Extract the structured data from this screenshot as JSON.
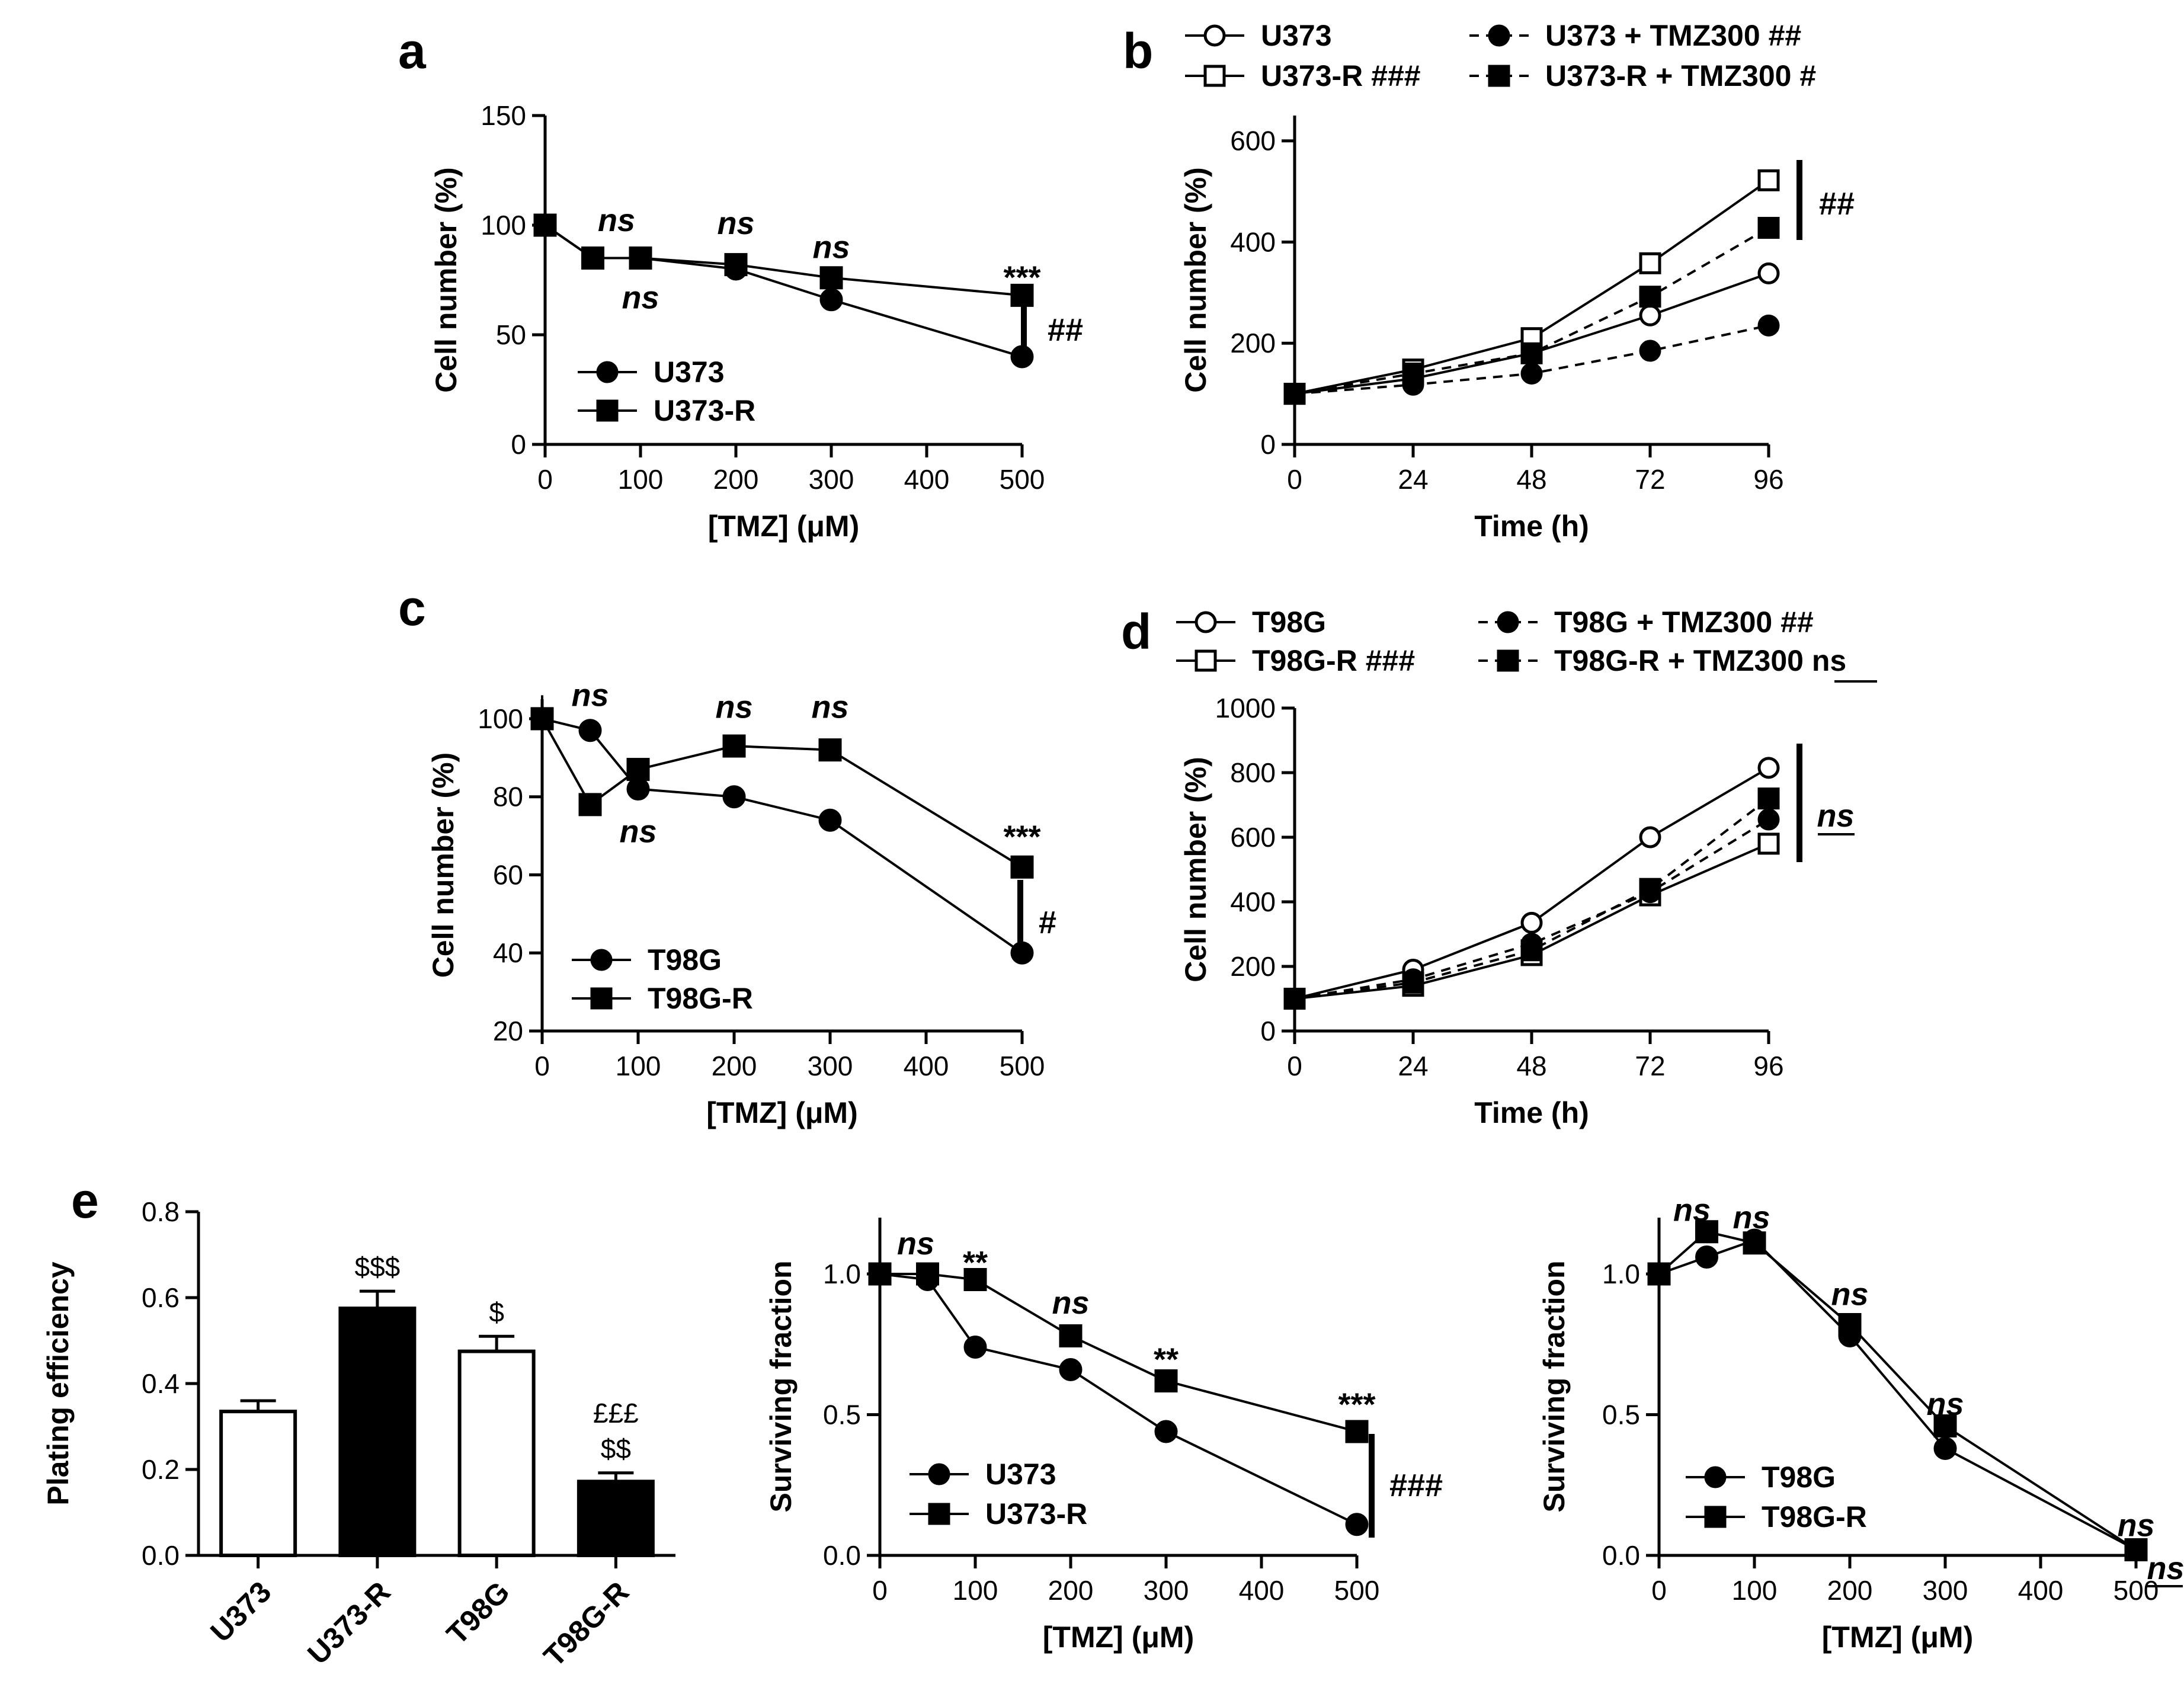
{
  "chart_data": [
    {
      "id": "a",
      "type": "line",
      "panel_label": "a",
      "xlabel": "[TMZ] (μM)",
      "ylabel": "Cell number (%)",
      "xlim": [
        0,
        500
      ],
      "ylim": [
        0,
        150
      ],
      "xticks": [
        "0",
        "100",
        "200",
        "300",
        "400",
        "500"
      ],
      "yticks": [
        "0",
        "50",
        "100",
        "150"
      ],
      "x": [
        0,
        50,
        100,
        200,
        300,
        500
      ],
      "series": [
        {
          "name": "U373",
          "marker": "filled-circle",
          "values": [
            100,
            85,
            85,
            80,
            66,
            40
          ]
        },
        {
          "name": "U373-R",
          "marker": "filled-square",
          "values": [
            100,
            85,
            85,
            82,
            76,
            68
          ]
        }
      ],
      "annotations": [
        "ns",
        "ns",
        "ns",
        "ns",
        "***",
        "##"
      ]
    },
    {
      "id": "b",
      "type": "line",
      "panel_label": "b",
      "xlabel": "Time (h)",
      "ylabel": "Cell number (%)",
      "xlim": [
        0,
        96
      ],
      "ylim": [
        0,
        650
      ],
      "xticks": [
        "0",
        "24",
        "48",
        "72",
        "96"
      ],
      "yticks": [
        "0",
        "200",
        "400",
        "600"
      ],
      "x": [
        0,
        24,
        48,
        72,
        96
      ],
      "series": [
        {
          "name": "U373",
          "marker": "open-circle",
          "values": [
            100,
            130,
            180,
            255,
            338
          ]
        },
        {
          "name": "U373-R ###",
          "marker": "open-square",
          "values": [
            100,
            148,
            210,
            358,
            522
          ]
        },
        {
          "name": "U373 + TMZ300 ##",
          "marker": "filled-circle",
          "values": [
            100,
            118,
            140,
            185,
            235
          ]
        },
        {
          "name": "U373-R + TMZ300 #",
          "marker": "filled-square",
          "values": [
            100,
            140,
            180,
            292,
            428
          ]
        }
      ],
      "annotations": [
        "##"
      ]
    },
    {
      "id": "c",
      "type": "line",
      "panel_label": "c",
      "xlabel": "[TMZ] (μM)",
      "ylabel": "Cell number (%)",
      "xlim": [
        0,
        500
      ],
      "ylim": [
        20,
        105
      ],
      "xticks": [
        "0",
        "100",
        "200",
        "300",
        "400",
        "500"
      ],
      "yticks": [
        "20",
        "40",
        "60",
        "80",
        "100"
      ],
      "x": [
        0,
        50,
        100,
        200,
        300,
        500
      ],
      "series": [
        {
          "name": "T98G",
          "marker": "filled-circle",
          "values": [
            100,
            97,
            82,
            80,
            74,
            40
          ]
        },
        {
          "name": "T98G-R",
          "marker": "filled-square",
          "values": [
            100,
            78,
            87,
            93,
            92,
            62
          ]
        }
      ],
      "annotations": [
        "ns",
        "ns",
        "ns",
        "ns",
        "***",
        "#"
      ]
    },
    {
      "id": "d",
      "type": "line",
      "panel_label": "d",
      "xlabel": "Time (h)",
      "ylabel": "Cell number (%)",
      "xlim": [
        0,
        96
      ],
      "ylim": [
        0,
        1000
      ],
      "xticks": [
        "0",
        "24",
        "48",
        "72",
        "96"
      ],
      "yticks": [
        "0",
        "200",
        "400",
        "600",
        "800",
        "1000"
      ],
      "x": [
        0,
        24,
        48,
        72,
        96
      ],
      "series": [
        {
          "name": "T98G",
          "marker": "open-circle",
          "values": [
            100,
            190,
            335,
            600,
            815
          ]
        },
        {
          "name": "T98G-R ###",
          "marker": "open-square",
          "values": [
            100,
            140,
            235,
            420,
            580
          ]
        },
        {
          "name": "T98G + TMZ300 ##",
          "marker": "filled-circle",
          "values": [
            100,
            160,
            270,
            430,
            655
          ]
        },
        {
          "name": "T98G-R + TMZ300 ns",
          "marker": "filled-square",
          "values": [
            100,
            150,
            250,
            440,
            720
          ]
        }
      ],
      "annotations": [
        "ns"
      ]
    },
    {
      "id": "e1",
      "type": "bar",
      "panel_label": "e",
      "xlabel": "",
      "ylabel": "Plating efficiency",
      "ylim": [
        0,
        0.8
      ],
      "yticks": [
        "0.0",
        "0.2",
        "0.4",
        "0.6",
        "0.8"
      ],
      "categories": [
        "U373",
        "U373-R",
        "T98G",
        "T98G-R"
      ],
      "values": [
        0.335,
        0.575,
        0.475,
        0.172
      ],
      "fills": [
        "white",
        "black",
        "white",
        "black"
      ],
      "bar_annotations": [
        "",
        "$$$",
        "$",
        "$$"
      ],
      "bar_annotations2": [
        "",
        "",
        "",
        "£££"
      ]
    },
    {
      "id": "e2",
      "type": "line",
      "xlabel": "[TMZ] (μM)",
      "ylabel": "Surviving fraction",
      "xlim": [
        0,
        500
      ],
      "ylim": [
        0,
        1.2
      ],
      "xticks": [
        "0",
        "100",
        "200",
        "300",
        "400",
        "500"
      ],
      "yticks": [
        "0.0",
        "0.5",
        "1.0"
      ],
      "x": [
        0,
        50,
        100,
        200,
        300,
        500
      ],
      "series": [
        {
          "name": "U373",
          "marker": "filled-circle",
          "values": [
            1.0,
            0.98,
            0.74,
            0.66,
            0.44,
            0.11
          ]
        },
        {
          "name": "U373-R",
          "marker": "filled-square",
          "values": [
            1.0,
            1.0,
            0.98,
            0.78,
            0.62,
            0.44
          ]
        }
      ],
      "annotations": [
        "ns",
        "**",
        "ns",
        "**",
        "***",
        "###"
      ]
    },
    {
      "id": "e3",
      "type": "line",
      "xlabel": "[TMZ] (μM)",
      "ylabel": "Surviving fraction",
      "xlim": [
        0,
        500
      ],
      "ylim": [
        0,
        1.2
      ],
      "xticks": [
        "0",
        "100",
        "200",
        "300",
        "400",
        "500"
      ],
      "yticks": [
        "0.0",
        "0.5",
        "1.0"
      ],
      "x": [
        0,
        50,
        100,
        200,
        300,
        500
      ],
      "series": [
        {
          "name": "T98G",
          "marker": "filled-circle",
          "values": [
            1.0,
            1.06,
            1.12,
            0.78,
            0.38,
            0.02
          ]
        },
        {
          "name": "T98G-R",
          "marker": "filled-square",
          "values": [
            1.0,
            1.15,
            1.11,
            0.82,
            0.46,
            0.02
          ]
        }
      ],
      "annotations": [
        "ns",
        "ns",
        "ns",
        "ns",
        "ns",
        "ns"
      ]
    }
  ]
}
